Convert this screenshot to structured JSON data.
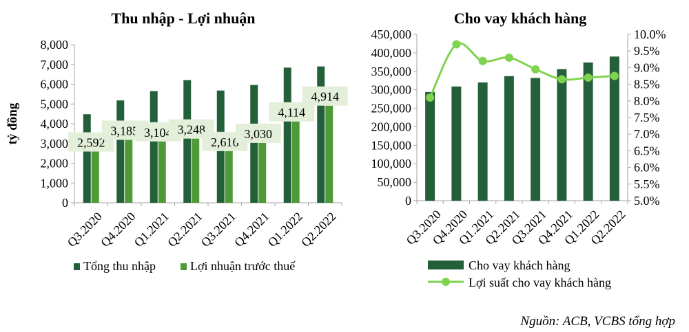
{
  "source": "Nguồn: ACB, VCBS tổng hợp",
  "colors": {
    "dark_green": "#23603a",
    "light_green": "#4e9a37",
    "line_green": "#7fd34e",
    "label_bg": "#e4efd9"
  },
  "chart_data": [
    {
      "type": "bar",
      "title": "Thu nhập - Lợi nhuận",
      "ylabel": "tỷ đồng",
      "xlabel": "",
      "ylim": [
        0,
        8000
      ],
      "yticks": [
        "0",
        "1,000",
        "2,000",
        "3,000",
        "4,000",
        "5,000",
        "6,000",
        "7,000",
        "8,000"
      ],
      "categories": [
        "Q3.2020",
        "Q4.2020",
        "Q1.2021",
        "Q2.2021",
        "Q3.2021",
        "Q4.2021",
        "Q1.2022",
        "Q2.2022"
      ],
      "series": [
        {
          "name": "Tổng thu nhập",
          "values": [
            4480,
            5180,
            5650,
            6210,
            5680,
            5960,
            6840,
            6900
          ]
        },
        {
          "name": "Lợi nhuận trước thuế",
          "values": [
            2592,
            3185,
            3104,
            3248,
            2616,
            3030,
            4114,
            4914
          ],
          "data_labels": [
            "2,592",
            "3,185",
            "3,104",
            "3,248",
            "2,616",
            "3,030",
            "4,114",
            "4,914"
          ]
        }
      ],
      "legend": "bottom",
      "grid": false
    },
    {
      "type": "bar",
      "title": "Cho vay khách hàng",
      "xlabel": "",
      "ylim": [
        0,
        450000
      ],
      "yticks": [
        "0",
        "50,000",
        "100,000",
        "150,000",
        "200,000",
        "250,000",
        "300,000",
        "350,000",
        "400,000",
        "450,000"
      ],
      "y2lim": [
        5.0,
        10.0
      ],
      "y2ticks": [
        "5.0%",
        "5.5%",
        "6.0%",
        "6.5%",
        "7.0%",
        "7.5%",
        "8.0%",
        "8.5%",
        "9.0%",
        "9.5%",
        "10.0%"
      ],
      "categories": [
        "Q3.2020",
        "Q4.2020",
        "Q1.2021",
        "Q2.2021",
        "Q3.2021",
        "Q4.2021",
        "Q1.2022",
        "Q2.2022"
      ],
      "series": [
        {
          "name": "Cho vay khách hàng",
          "type": "bar",
          "axis": "left",
          "values": [
            294000,
            309000,
            320000,
            337000,
            332000,
            356000,
            374000,
            390000
          ]
        },
        {
          "name": "Lợi suất cho vay khách hàng",
          "type": "line",
          "axis": "right",
          "values": [
            8.1,
            9.7,
            9.2,
            9.3,
            8.95,
            8.65,
            8.7,
            8.75
          ]
        }
      ],
      "legend": "bottom",
      "grid": false
    }
  ]
}
